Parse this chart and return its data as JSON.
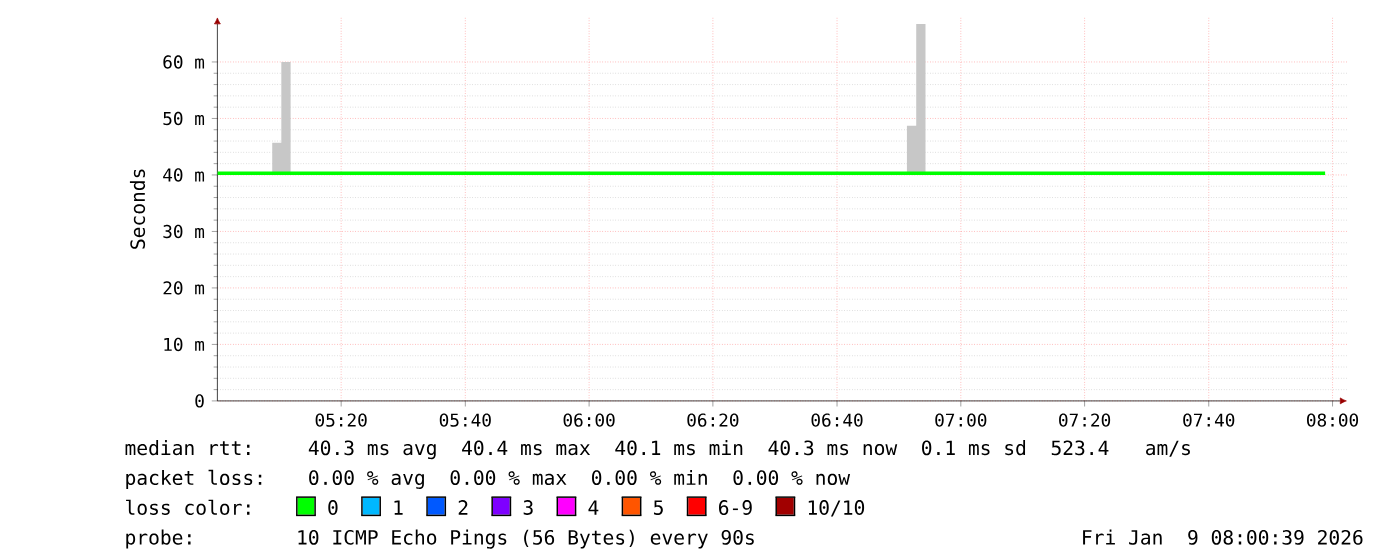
{
  "chart_data": {
    "type": "line",
    "ylabel": "Seconds",
    "x": [
      5.0,
      5.1475,
      5.172,
      5.197,
      6.855,
      6.88,
      6.905,
      7.98
    ],
    "series": [
      {
        "name": "0",
        "color": "#00ff00",
        "values": [
          40.3,
          40.3,
          40.3,
          40.3,
          40.3,
          40.3,
          40.3,
          40.3
        ],
        "lower": [
          40.3,
          40.3,
          40.3,
          40.3,
          40.3,
          40.3,
          40.3,
          40.3
        ],
        "upper": [
          40.3,
          45.7,
          60,
          40.3,
          48.7,
          66.7,
          40.3,
          40.3
        ]
      },
      {
        "name": "1",
        "color": "#00b8ff",
        "values": [
          null,
          null,
          null,
          null,
          null,
          null,
          null,
          null
        ]
      },
      {
        "name": "2",
        "color": "#0059ff",
        "values": [
          null,
          null,
          null,
          null,
          null,
          null,
          null,
          null
        ]
      },
      {
        "name": "3",
        "color": "#7e00ff",
        "values": [
          null,
          null,
          null,
          null,
          null,
          null,
          null,
          null
        ]
      },
      {
        "name": "4",
        "color": "#ff00ff",
        "values": [
          null,
          null,
          null,
          null,
          null,
          null,
          null,
          null
        ]
      },
      {
        "name": "5",
        "color": "#ff5500",
        "values": [
          null,
          null,
          null,
          null,
          null,
          null,
          null,
          null
        ]
      },
      {
        "name": "6-9",
        "color": "#ff0000",
        "values": [
          null,
          null,
          null,
          null,
          null,
          null,
          null,
          null
        ]
      },
      {
        "name": "10/10",
        "color": "#a10000",
        "values": [
          null,
          null,
          null,
          null,
          null,
          null,
          null,
          null
        ]
      }
    ],
    "legend_title": "loss color:",
    "legend": "bottom",
    "xlim": [
      5.0,
      8.04
    ],
    "ylim": [
      0,
      68
    ],
    "xticks": [
      {
        "value": 5.333,
        "label": "05:20"
      },
      {
        "value": 5.667,
        "label": "05:40"
      },
      {
        "value": 6.0,
        "label": "06:00"
      },
      {
        "value": 6.333,
        "label": "06:20"
      },
      {
        "value": 6.667,
        "label": "06:40"
      },
      {
        "value": 7.0,
        "label": "07:00"
      },
      {
        "value": 7.333,
        "label": "07:20"
      },
      {
        "value": 7.667,
        "label": "07:40"
      },
      {
        "value": 8.0,
        "label": "08:00"
      }
    ],
    "yticks": [
      0,
      {
        "value": 10,
        "label": "10 m"
      },
      {
        "value": 20,
        "label": "20 m"
      },
      {
        "value": 30,
        "label": "30 m"
      },
      {
        "value": 40,
        "label": "40 m"
      },
      {
        "value": 50,
        "label": "50 m"
      },
      {
        "value": 60,
        "label": "60 m"
      }
    ],
    "grid": true,
    "annotations": [
      "median rtt:",
      "40.3 ms avg  40.4 ms max  40.1 ms min  40.3 ms now  0.1 ms sd  523.4   am/s",
      "packet loss:",
      "0.00 % avg  0.00 % max  0.00 % min  0.00 % now",
      "probe:",
      "10 ICMP Echo Pings (56 Bytes) every 90s",
      "Fri Jan  9 08:00:39 2026"
    ]
  }
}
